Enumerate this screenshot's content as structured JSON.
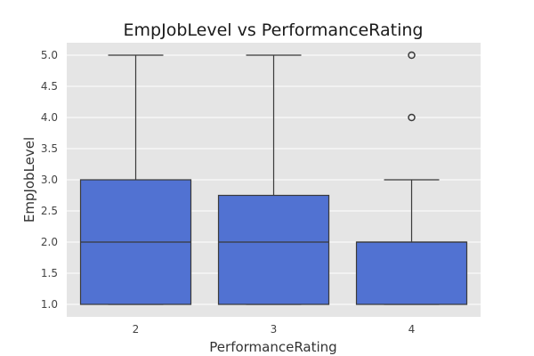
{
  "chart_data": {
    "type": "box",
    "title": "EmpJobLevel vs PerformanceRating",
    "xlabel": "PerformanceRating",
    "ylabel": "EmpJobLevel",
    "ylim": [
      0.8,
      5.2
    ],
    "yticks": [
      "1.0",
      "1.5",
      "2.0",
      "2.5",
      "3.0",
      "3.5",
      "4.0",
      "4.5",
      "5.0"
    ],
    "grid": true,
    "categories": [
      "2",
      "3",
      "4"
    ],
    "boxes": [
      {
        "category": "2",
        "whisker_low": 1.0,
        "q1": 1.0,
        "median": 2.0,
        "q3": 3.0,
        "whisker_high": 5.0,
        "outliers": []
      },
      {
        "category": "3",
        "whisker_low": 1.0,
        "q1": 1.0,
        "median": 2.0,
        "q3": 2.75,
        "whisker_high": 5.0,
        "outliers": []
      },
      {
        "category": "4",
        "whisker_low": 1.0,
        "q1": 1.0,
        "median": 2.0,
        "q3": 2.0,
        "whisker_high": 3.0,
        "outliers": [
          4.0,
          5.0
        ]
      }
    ],
    "colors": {
      "box_fill": "#5172d2",
      "box_edge": "#3a3a3a",
      "plot_bg": "#e5e5e5",
      "grid": "#ffffff"
    }
  }
}
